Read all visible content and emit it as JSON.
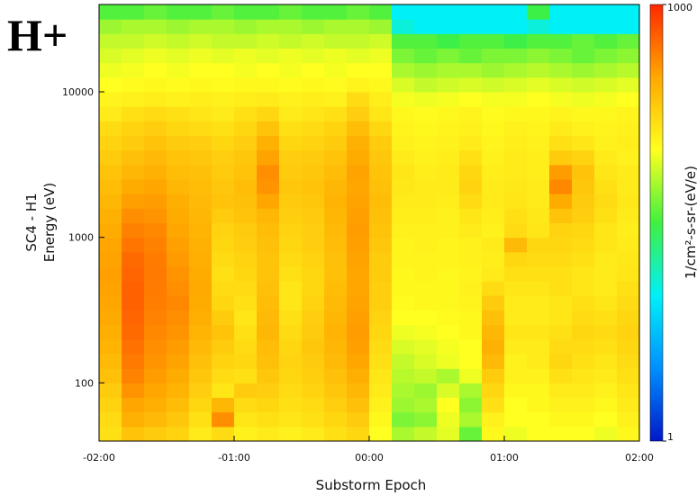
{
  "chart_data": {
    "type": "heatmap",
    "title": "H+",
    "ylabel": "SC4 - H1",
    "ylabel2": "Energy (eV)",
    "xlabel": "Substorm Epoch",
    "colorbar_label": "1/cm²-s-sr-(eV/e)",
    "x": [
      -115,
      -105,
      -95,
      -85,
      -75,
      -65,
      -55,
      -45,
      -35,
      -25,
      -15,
      -5,
      5,
      15,
      25,
      35,
      45,
      55,
      65,
      75,
      85,
      95,
      105,
      115
    ],
    "xlim": [
      -120,
      120
    ],
    "xticks": [
      {
        "value": -120,
        "label": "-02:00"
      },
      {
        "value": -60,
        "label": "-01:00"
      },
      {
        "value": 0,
        "label": "00:00"
      },
      {
        "value": 60,
        "label": "01:00"
      },
      {
        "value": 120,
        "label": "02:00"
      }
    ],
    "y": [
      44.7,
      56.2,
      70.8,
      89.1,
      112,
      141,
      178,
      224,
      282,
      355,
      447,
      562,
      708,
      891,
      1122,
      1413,
      1778,
      2239,
      2818,
      3548,
      4467,
      5623,
      7079,
      8913,
      11220,
      14125,
      17783,
      22387,
      28184,
      35481
    ],
    "ylim": [
      39.8,
      39810
    ],
    "ylog": true,
    "yticks": [
      100,
      1000,
      10000
    ],
    "zlim": [
      1,
      1000
    ],
    "zlog": true,
    "zticks": [
      1,
      1000
    ],
    "colorscale": [
      "#0018c8",
      "#0090ff",
      "#00f0f8",
      "#40f040",
      "#ffff20",
      "#ffa800",
      "#ff2800"
    ],
    "z": [
      [
        150,
        220,
        200,
        180,
        130,
        160,
        120,
        130,
        120,
        130,
        150,
        170,
        100,
        60,
        70,
        85,
        40,
        110,
        90,
        100,
        100,
        100,
        90,
        110
      ],
      [
        160,
        280,
        250,
        210,
        150,
        400,
        140,
        150,
        140,
        150,
        170,
        200,
        110,
        45,
        50,
        90,
        60,
        120,
        100,
        100,
        110,
        110,
        100,
        120
      ],
      [
        180,
        320,
        290,
        240,
        170,
        260,
        160,
        170,
        150,
        160,
        190,
        230,
        120,
        55,
        60,
        100,
        50,
        150,
        100,
        110,
        120,
        120,
        110,
        130
      ],
      [
        200,
        380,
        320,
        270,
        190,
        140,
        200,
        190,
        160,
        180,
        210,
        260,
        130,
        60,
        55,
        80,
        60,
        170,
        110,
        110,
        130,
        130,
        120,
        140
      ],
      [
        230,
        440,
        350,
        300,
        210,
        160,
        150,
        210,
        170,
        190,
        230,
        290,
        140,
        65,
        70,
        60,
        90,
        200,
        120,
        120,
        150,
        140,
        130,
        150
      ],
      [
        250,
        480,
        380,
        330,
        230,
        180,
        170,
        230,
        180,
        200,
        250,
        320,
        150,
        70,
        80,
        90,
        100,
        250,
        120,
        130,
        170,
        150,
        140,
        160
      ],
      [
        270,
        520,
        400,
        350,
        250,
        200,
        160,
        240,
        170,
        210,
        260,
        340,
        160,
        80,
        85,
        95,
        100,
        280,
        130,
        130,
        160,
        160,
        150,
        170
      ],
      [
        290,
        550,
        420,
        380,
        270,
        220,
        150,
        260,
        160,
        200,
        270,
        350,
        170,
        90,
        95,
        100,
        110,
        260,
        140,
        140,
        150,
        170,
        160,
        180
      ],
      [
        310,
        580,
        440,
        400,
        290,
        200,
        140,
        250,
        150,
        190,
        260,
        340,
        180,
        100,
        100,
        105,
        110,
        230,
        130,
        130,
        140,
        160,
        150,
        170
      ],
      [
        320,
        600,
        460,
        420,
        300,
        170,
        150,
        240,
        140,
        180,
        250,
        330,
        190,
        105,
        110,
        110,
        115,
        200,
        130,
        130,
        140,
        150,
        140,
        160
      ],
      [
        330,
        600,
        470,
        400,
        310,
        160,
        160,
        230,
        140,
        170,
        240,
        320,
        190,
        110,
        110,
        110,
        120,
        160,
        140,
        140,
        150,
        140,
        130,
        150
      ],
      [
        340,
        580,
        480,
        380,
        300,
        150,
        170,
        220,
        150,
        170,
        230,
        320,
        200,
        110,
        115,
        110,
        115,
        130,
        150,
        150,
        150,
        140,
        130,
        140
      ],
      [
        330,
        550,
        470,
        360,
        290,
        160,
        180,
        220,
        160,
        180,
        230,
        330,
        200,
        115,
        115,
        115,
        120,
        125,
        170,
        160,
        160,
        150,
        130,
        135
      ],
      [
        320,
        500,
        450,
        340,
        280,
        170,
        190,
        230,
        170,
        190,
        240,
        340,
        210,
        115,
        120,
        115,
        120,
        130,
        250,
        170,
        170,
        160,
        140,
        130
      ],
      [
        300,
        450,
        420,
        320,
        270,
        180,
        200,
        240,
        180,
        190,
        250,
        350,
        220,
        120,
        120,
        120,
        130,
        120,
        160,
        140,
        180,
        170,
        140,
        125
      ],
      [
        280,
        400,
        380,
        300,
        260,
        200,
        220,
        260,
        190,
        200,
        260,
        340,
        230,
        125,
        125,
        120,
        140,
        125,
        150,
        135,
        220,
        190,
        150,
        130
      ],
      [
        260,
        340,
        350,
        290,
        250,
        220,
        230,
        320,
        200,
        210,
        270,
        330,
        240,
        130,
        130,
        125,
        160,
        130,
        140,
        130,
        300,
        200,
        160,
        135
      ],
      [
        240,
        300,
        320,
        260,
        240,
        210,
        240,
        380,
        210,
        220,
        260,
        320,
        230,
        135,
        130,
        130,
        180,
        130,
        135,
        130,
        420,
        210,
        150,
        130
      ],
      [
        220,
        260,
        280,
        240,
        230,
        200,
        220,
        400,
        200,
        210,
        240,
        330,
        220,
        140,
        125,
        130,
        170,
        125,
        130,
        125,
        350,
        220,
        140,
        130
      ],
      [
        200,
        230,
        250,
        220,
        210,
        190,
        210,
        330,
        190,
        200,
        220,
        300,
        210,
        130,
        120,
        125,
        150,
        120,
        130,
        125,
        200,
        180,
        130,
        120
      ],
      [
        180,
        200,
        220,
        200,
        190,
        170,
        190,
        280,
        170,
        180,
        200,
        280,
        200,
        120,
        115,
        120,
        130,
        115,
        125,
        120,
        150,
        140,
        120,
        125
      ],
      [
        160,
        180,
        190,
        170,
        160,
        150,
        170,
        220,
        150,
        160,
        180,
        240,
        170,
        115,
        110,
        115,
        120,
        110,
        120,
        115,
        130,
        120,
        115,
        120
      ],
      [
        130,
        150,
        160,
        150,
        140,
        130,
        150,
        170,
        130,
        140,
        150,
        190,
        140,
        110,
        105,
        110,
        115,
        105,
        110,
        110,
        115,
        110,
        110,
        115
      ],
      [
        115,
        120,
        125,
        120,
        125,
        120,
        125,
        130,
        120,
        125,
        120,
        160,
        125,
        95,
        90,
        95,
        100,
        95,
        95,
        100,
        95,
        90,
        95,
        100
      ],
      [
        100,
        105,
        110,
        105,
        110,
        105,
        110,
        110,
        105,
        110,
        105,
        115,
        110,
        80,
        70,
        75,
        80,
        75,
        80,
        85,
        80,
        75,
        80,
        85
      ],
      [
        90,
        95,
        100,
        95,
        100,
        100,
        95,
        100,
        95,
        100,
        95,
        100,
        100,
        60,
        55,
        60,
        60,
        55,
        60,
        65,
        60,
        55,
        60,
        65
      ],
      [
        80,
        85,
        90,
        85,
        90,
        85,
        90,
        85,
        90,
        85,
        90,
        85,
        90,
        45,
        40,
        45,
        40,
        45,
        45,
        50,
        45,
        40,
        45,
        50
      ],
      [
        70,
        70,
        75,
        70,
        75,
        70,
        70,
        75,
        70,
        75,
        70,
        70,
        75,
        35,
        35,
        30,
        35,
        35,
        30,
        35,
        35,
        40,
        35,
        40
      ],
      [
        55,
        60,
        60,
        55,
        60,
        60,
        55,
        60,
        60,
        55,
        60,
        60,
        55,
        12,
        10,
        10,
        10,
        10,
        10,
        12,
        10,
        10,
        10,
        10
      ],
      [
        35,
        35,
        40,
        35,
        35,
        40,
        35,
        35,
        40,
        35,
        35,
        40,
        35,
        10,
        10,
        10,
        10,
        10,
        10,
        30,
        10,
        10,
        10,
        10
      ]
    ]
  }
}
